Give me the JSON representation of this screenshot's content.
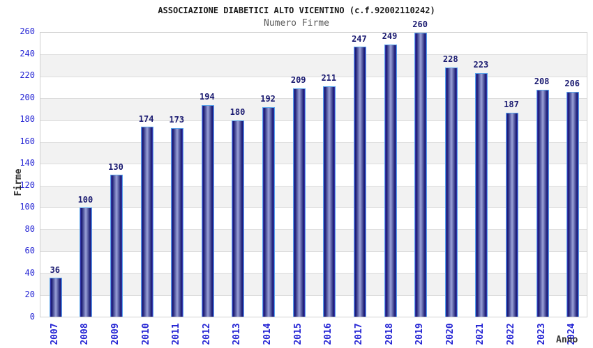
{
  "header": {
    "title": "ASSOCIAZIONE DIABETICI ALTO VICENTINO (c.f.92002110242)",
    "subtitle": "Numero Firme"
  },
  "chart_data": {
    "type": "bar",
    "title": "ASSOCIAZIONE DIABETICI ALTO VICENTINO (c.f.92002110242)",
    "subtitle": "Numero Firme",
    "xlabel": "Anno",
    "ylabel": "Firme",
    "categories": [
      "2007",
      "2008",
      "2009",
      "2010",
      "2011",
      "2012",
      "2013",
      "2014",
      "2015",
      "2016",
      "2017",
      "2018",
      "2019",
      "2020",
      "2021",
      "2022",
      "2023",
      "2024"
    ],
    "values": [
      36,
      100,
      130,
      174,
      173,
      194,
      180,
      192,
      209,
      211,
      247,
      249,
      260,
      228,
      223,
      187,
      208,
      206
    ],
    "ylim": [
      0,
      260
    ],
    "ytick_step": 20,
    "legend": "none",
    "grid": "horizontal-bands",
    "bar_value_labels_shown": true
  },
  "colors": {
    "bar_dark": "#16166e",
    "bar_mid": "#9aa2d8",
    "bar_edge_line": "#3d3dc4",
    "bar_border": "#58a4ea",
    "tick_label": "#2424d4",
    "value_label": "#1a1a70",
    "band_gray": "#f2f2f2",
    "band_white": "#ffffff",
    "gridline": "#dcdcdc",
    "plot_border": "#d0d0d0",
    "title_color": "#1a1a1a",
    "subtitle_color": "#5a5a5a",
    "axis_title_color": "#333333"
  }
}
